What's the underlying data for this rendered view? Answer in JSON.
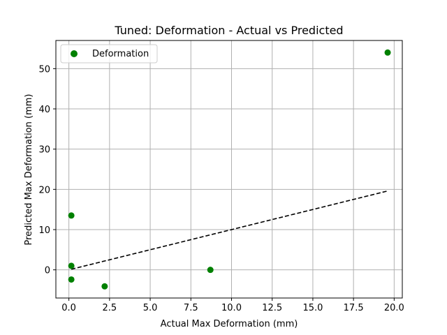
{
  "chart_data": {
    "type": "scatter",
    "title": "Tuned: Deformation - Actual vs Predicted",
    "xlabel": "Actual Max Deformation (mm)",
    "ylabel": "Predicted Max Deformation (mm)",
    "xlim": [
      -0.8,
      20.5
    ],
    "ylim": [
      -7,
      57
    ],
    "x_ticks": [
      0.0,
      2.5,
      5.0,
      7.5,
      10.0,
      12.5,
      15.0,
      17.5,
      20.0
    ],
    "x_tick_labels": [
      "0.0",
      "2.5",
      "5.0",
      "7.5",
      "10.0",
      "12.5",
      "15.0",
      "17.5",
      "20.0"
    ],
    "y_ticks": [
      0,
      10,
      20,
      30,
      40,
      50
    ],
    "y_tick_labels": [
      "0",
      "10",
      "20",
      "30",
      "40",
      "50"
    ],
    "grid": true,
    "legend_position": "top-left",
    "series": [
      {
        "name": "Deformation",
        "color": "#008000",
        "points": [
          {
            "x": 0.15,
            "y": 13.5
          },
          {
            "x": 0.15,
            "y": 1.0
          },
          {
            "x": 0.15,
            "y": -2.4
          },
          {
            "x": 2.2,
            "y": -4.1
          },
          {
            "x": 8.7,
            "y": 0.0
          },
          {
            "x": 19.6,
            "y": 54.0
          }
        ]
      }
    ],
    "reference_line": {
      "style": "dashed",
      "color": "#000000",
      "from": [
        0.15,
        0.15
      ],
      "to": [
        19.6,
        19.6
      ]
    }
  }
}
